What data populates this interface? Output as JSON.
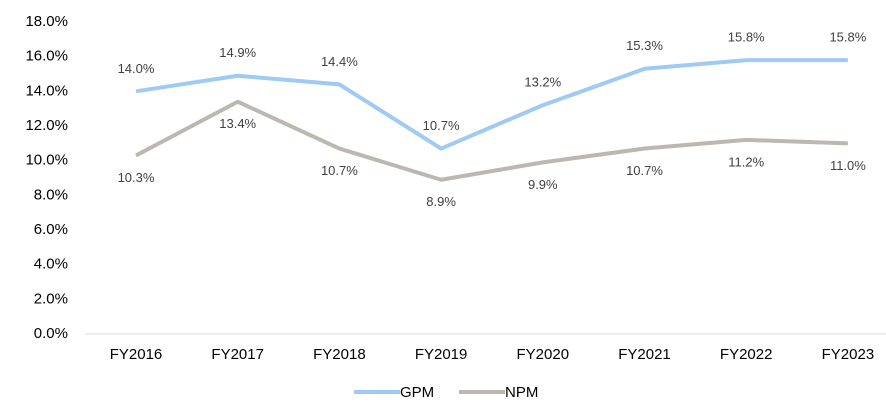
{
  "chart_data": {
    "type": "line",
    "categories": [
      "FY2016",
      "FY2017",
      "FY2018",
      "FY2019",
      "FY2020",
      "FY2021",
      "FY2022",
      "FY2023"
    ],
    "series": [
      {
        "name": "GPM",
        "color": "#9ecaf4",
        "values": [
          14.0,
          14.9,
          14.4,
          10.7,
          13.2,
          15.3,
          15.8,
          15.8
        ],
        "value_labels": [
          "14.0%",
          "14.9%",
          "14.4%",
          "10.7%",
          "13.2%",
          "15.3%",
          "15.8%",
          "15.8%"
        ]
      },
      {
        "name": "NPM",
        "color": "#bdb7b1",
        "values": [
          10.3,
          13.4,
          10.7,
          8.9,
          9.9,
          10.7,
          11.2,
          11.0
        ],
        "value_labels": [
          "10.3%",
          "13.4%",
          "10.7%",
          "8.9%",
          "9.9%",
          "10.7%",
          "11.2%",
          "11.0%"
        ]
      }
    ],
    "ylim": [
      0,
      18
    ],
    "yticks": [
      {
        "value": 0,
        "label": "0.0%"
      },
      {
        "value": 2,
        "label": "2.0%"
      },
      {
        "value": 4,
        "label": "4.0%"
      },
      {
        "value": 6,
        "label": "6.0%"
      },
      {
        "value": 8,
        "label": "8.0%"
      },
      {
        "value": 10,
        "label": "10.0%"
      },
      {
        "value": 12,
        "label": "12.0%"
      },
      {
        "value": 14,
        "label": "14.0%"
      },
      {
        "value": 16,
        "label": "16.0%"
      },
      {
        "value": 18,
        "label": "18.0%"
      }
    ],
    "grid": false,
    "legend": "bottom"
  }
}
